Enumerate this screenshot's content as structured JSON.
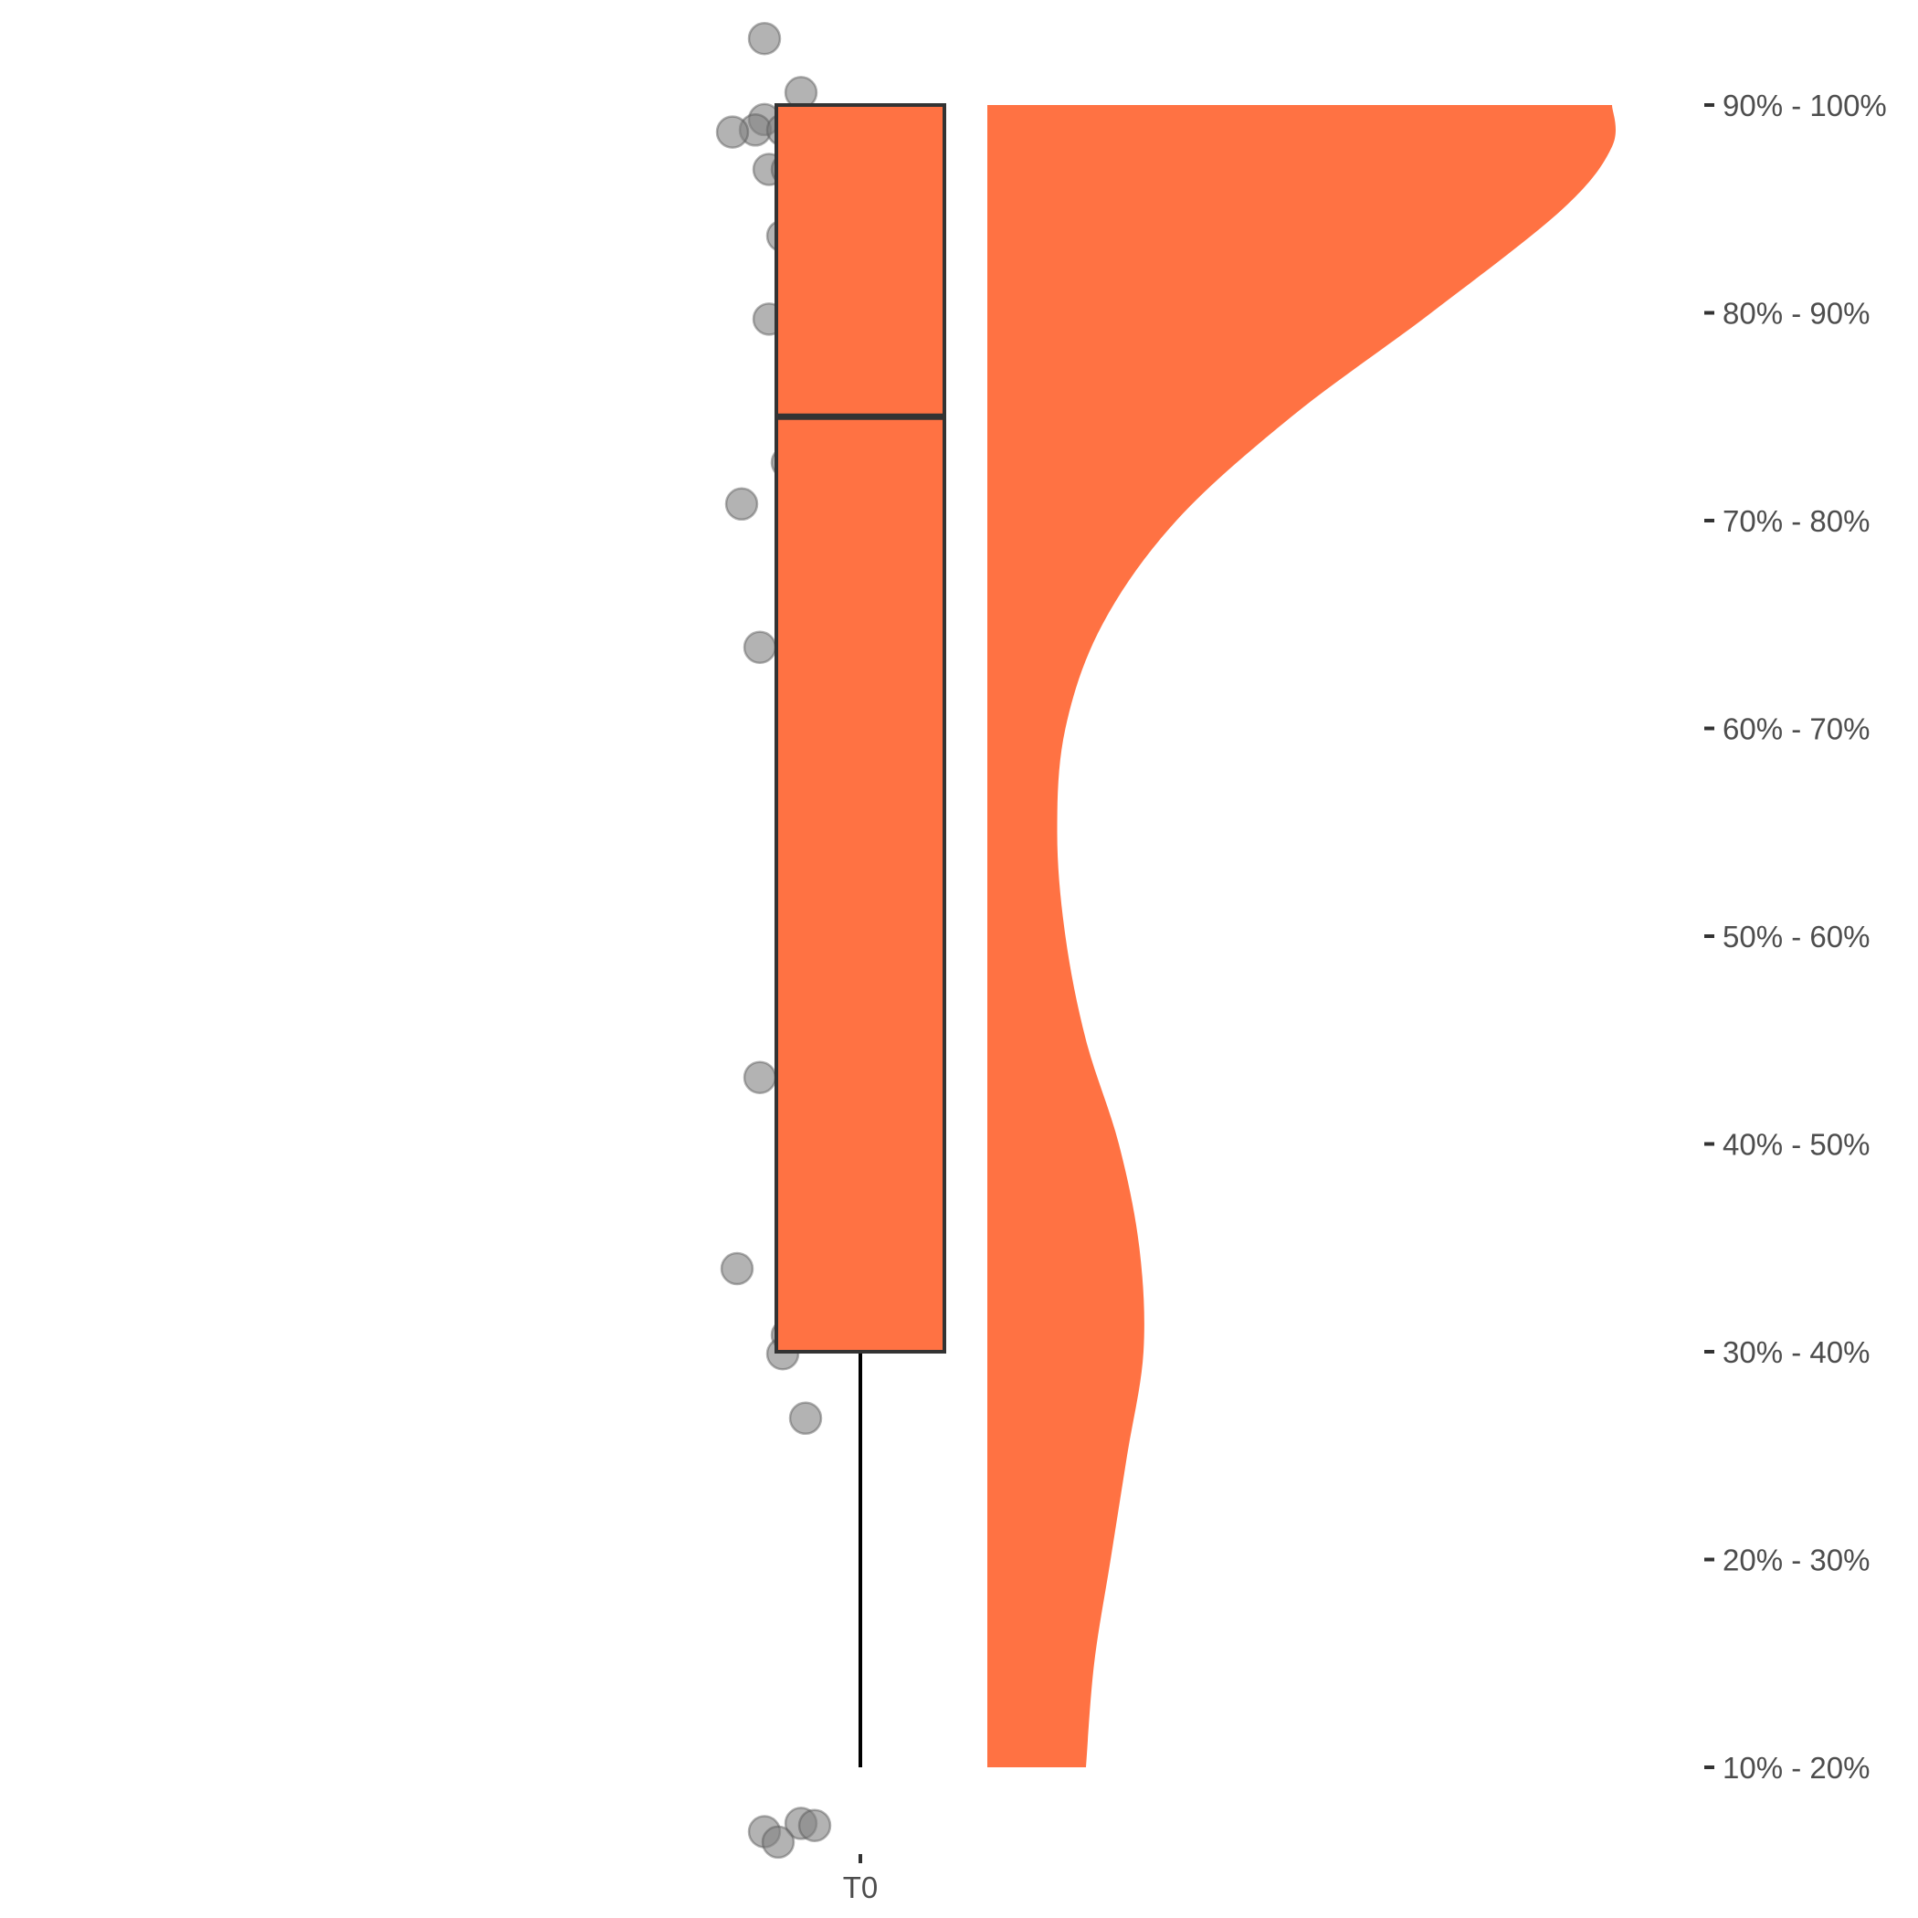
{
  "chart_data": {
    "type": "raincloud",
    "title": "",
    "xlabel": "",
    "ylabel": "",
    "categories": [
      "T0"
    ],
    "y_axis_side": "right",
    "y_ticks": [
      "10% - 20%",
      "20% - 30%",
      "30% - 40%",
      "40% - 50%",
      "50% - 60%",
      "60% - 70%",
      "70% - 80%",
      "80% - 90%",
      "90% - 100%"
    ],
    "ylim": [
      0.6,
      9.3
    ],
    "grid": false,
    "legend": "none",
    "colors": {
      "fill": "#FF7243",
      "box_border": "#333333",
      "points": "#808080",
      "text": "#4D4D4D"
    },
    "box": {
      "category": "T0",
      "whisker_low": 1,
      "q1": 3,
      "median": 7.5,
      "q3": 9,
      "whisker_high": 9
    },
    "density": [
      [
        1.0,
        0.12
      ],
      [
        1.5,
        0.13
      ],
      [
        2.0,
        0.15
      ],
      [
        2.5,
        0.17
      ],
      [
        3.0,
        0.19
      ],
      [
        3.5,
        0.185
      ],
      [
        4.0,
        0.16
      ],
      [
        4.5,
        0.12
      ],
      [
        5.0,
        0.095
      ],
      [
        5.5,
        0.085
      ],
      [
        6.0,
        0.095
      ],
      [
        6.5,
        0.14
      ],
      [
        7.0,
        0.23
      ],
      [
        7.5,
        0.37
      ],
      [
        8.0,
        0.54
      ],
      [
        8.5,
        0.7
      ],
      [
        8.8,
        0.76
      ],
      [
        9.0,
        0.76
      ]
    ],
    "points": [
      {
        "x_jitter": -0.21,
        "y": 9.32
      },
      {
        "x_jitter": -0.13,
        "y": 9.06
      },
      {
        "x_jitter": -0.21,
        "y": 8.93
      },
      {
        "x_jitter": -0.23,
        "y": 8.88
      },
      {
        "x_jitter": -0.17,
        "y": 8.88
      },
      {
        "x_jitter": -0.28,
        "y": 8.87
      },
      {
        "x_jitter": -0.14,
        "y": 8.79
      },
      {
        "x_jitter": -0.2,
        "y": 8.69
      },
      {
        "x_jitter": -0.16,
        "y": 8.69
      },
      {
        "x_jitter": -0.17,
        "y": 8.37
      },
      {
        "x_jitter": -0.1,
        "y": 8.23
      },
      {
        "x_jitter": -0.2,
        "y": 7.97
      },
      {
        "x_jitter": -0.16,
        "y": 7.28
      },
      {
        "x_jitter": -0.26,
        "y": 7.08
      },
      {
        "x_jitter": -0.22,
        "y": 6.39
      },
      {
        "x_jitter": -0.22,
        "y": 4.32
      },
      {
        "x_jitter": -0.1,
        "y": 4.2
      },
      {
        "x_jitter": -0.27,
        "y": 3.4
      },
      {
        "x_jitter": -0.16,
        "y": 3.08
      },
      {
        "x_jitter": -0.17,
        "y": 2.99
      },
      {
        "x_jitter": -0.12,
        "y": 2.68
      },
      {
        "x_jitter": -0.13,
        "y": 0.73
      },
      {
        "x_jitter": -0.1,
        "y": 0.72
      },
      {
        "x_jitter": -0.21,
        "y": 0.69
      },
      {
        "x_jitter": -0.18,
        "y": 0.64
      }
    ]
  }
}
